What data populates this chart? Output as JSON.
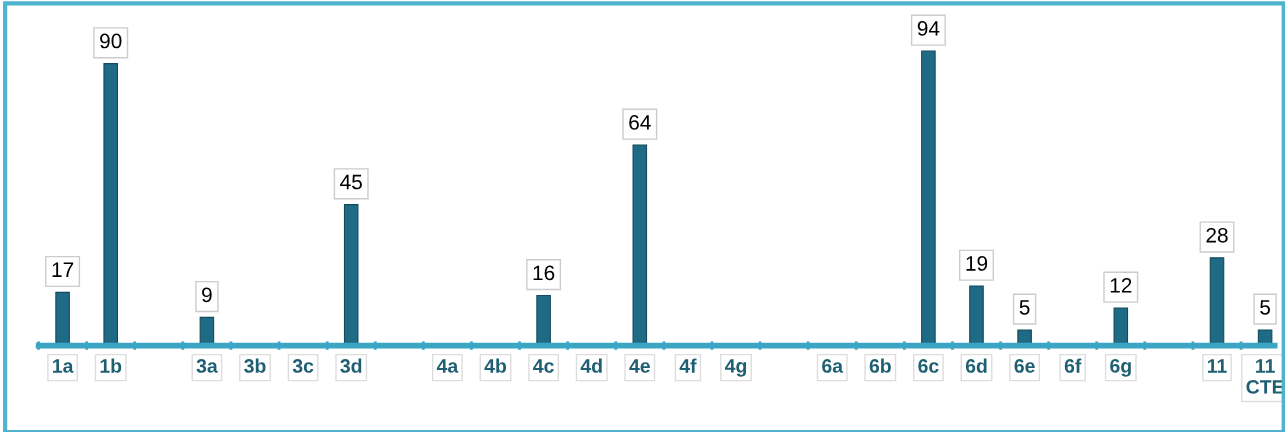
{
  "chart_data": {
    "type": "bar",
    "categories": [
      "1a",
      "1b",
      null,
      "3a",
      "3b",
      "3c",
      "3d",
      null,
      "4a",
      "4b",
      "4c",
      "4d",
      "4e",
      "4f",
      "4g",
      null,
      "6a",
      "6b",
      "6c",
      "6d",
      "6e",
      "6f",
      "6g",
      null,
      "11",
      "11\nCTE"
    ],
    "values": [
      17,
      90,
      null,
      9,
      null,
      null,
      45,
      null,
      null,
      null,
      16,
      null,
      64,
      null,
      null,
      null,
      null,
      null,
      94,
      19,
      5,
      null,
      12,
      null,
      28,
      5
    ],
    "color": "#1f6b85",
    "data_labels": true,
    "grid": false
  }
}
